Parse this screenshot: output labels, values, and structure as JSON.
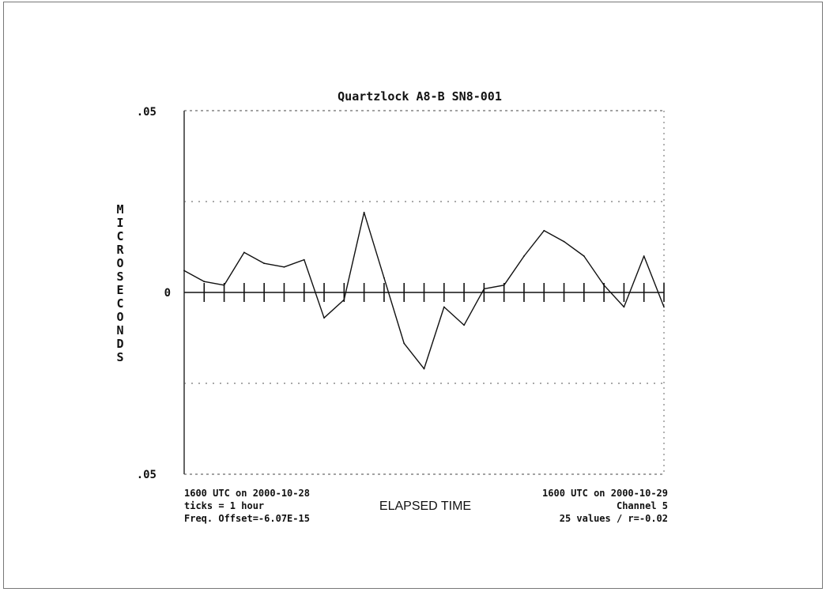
{
  "chart_data": {
    "type": "line",
    "title": "Quartzlock A8-B SN8-001",
    "ylabel": "MICROSECONDS",
    "xlabel": "ELAPSED TIME",
    "ylim": [
      -0.05,
      0.05
    ],
    "y_tick_labels": [
      ".05",
      "0",
      ".05"
    ],
    "grid": "dotted horizontal at ±0.025",
    "x_ticks_per": "1 hour",
    "x_tick_count": 24,
    "series": [
      {
        "values": [
          0.006,
          0.003,
          0.002,
          0.011,
          0.008,
          0.007,
          0.009,
          -0.007,
          -0.002,
          0.022,
          0.004,
          -0.014,
          -0.021,
          -0.004,
          -0.009,
          0.001,
          0.002,
          0.01,
          0.017,
          0.014,
          0.01,
          0.002,
          -0.004,
          0.01,
          -0.004
        ]
      }
    ],
    "annotations": {
      "bottom_left": [
        "1600 UTC on 2000-10-28",
        "ticks = 1 hour",
        "Freq. Offset=-6.07E-15"
      ],
      "bottom_right": [
        "1600 UTC on 2000-10-29",
        "Channel 5",
        "25 values / r=-0.02"
      ]
    }
  }
}
